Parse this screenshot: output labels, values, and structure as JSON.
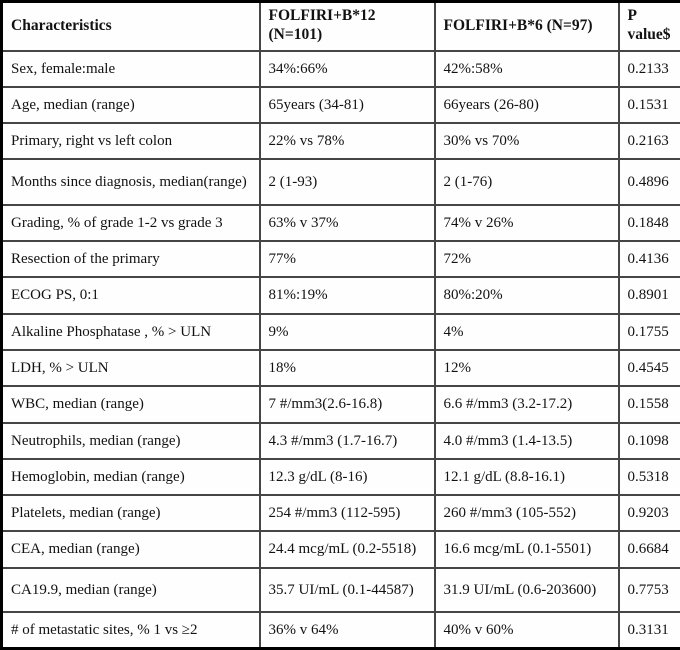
{
  "header": {
    "columns": [
      "Characteristics",
      "FOLFIRI+B*12 (N=101)",
      "FOLFIRI+B*6 (N=97)",
      "P value$"
    ]
  },
  "rows": [
    {
      "label": "Sex, female:male",
      "b12": "34%:66%",
      "b6": "42%:58%",
      "p": "0.2133"
    },
    {
      "label": "Age, median (range)",
      "b12": "65years (34-81)",
      "b6": "66years (26-80)",
      "p": "0.1531"
    },
    {
      "label": "Primary, right vs left colon",
      "b12": "22% vs 78%",
      "b6": "30% vs 70%",
      "p": "0.2163"
    },
    {
      "label": "Months since diagnosis, median(range)",
      "b12": "2 (1-93)",
      "b6": "2 (1-76)",
      "p": "0.4896"
    },
    {
      "label": "Grading, % of grade 1-2 vs grade 3",
      "b12": "63% v 37%",
      "b6": "74% v 26%",
      "p": "0.1848"
    },
    {
      "label": "Resection of the primary",
      "b12": "77%",
      "b6": "72%",
      "p": "0.4136"
    },
    {
      "label": "ECOG PS, 0:1",
      "b12": "81%:19%",
      "b6": "80%:20%",
      "p": "0.8901"
    },
    {
      "label": "Alkaline Phosphatase , % > ULN",
      "b12": "9%",
      "b6": "4%",
      "p": "0.1755"
    },
    {
      "label": "LDH, % > ULN",
      "b12": "18%",
      "b6": "12%",
      "p": "0.4545"
    },
    {
      "label": "WBC, median (range)",
      "b12": "7 #/mm3(2.6-16.8)",
      "b6": "6.6 #/mm3 (3.2-17.2)",
      "p": "0.1558"
    },
    {
      "label": "Neutrophils, median (range)",
      "b12": "4.3 #/mm3 (1.7-16.7)",
      "b6": "4.0 #/mm3 (1.4-13.5)",
      "p": "0.1098"
    },
    {
      "label": "Hemoglobin, median (range)",
      "b12": "12.3 g/dL (8-16)",
      "b6": "12.1 g/dL (8.8-16.1)",
      "p": "0.5318"
    },
    {
      "label": "Platelets, median (range)",
      "b12": "254 #/mm3 (112-595)",
      "b6": "260 #/mm3 (105-552)",
      "p": "0.9203"
    },
    {
      "label": "CEA, median (range)",
      "b12": "24.4 mcg/mL (0.2-5518)",
      "b6": "16.6 mcg/mL (0.1-5501)",
      "p": "0.6684"
    },
    {
      "label": "CA19.9, median (range)",
      "b12": "35.7 UI/mL (0.1-44587)",
      "b6": "31.9 UI/mL (0.6-203600)",
      "p": "0.7753"
    },
    {
      "label": "# of metastatic sites, % 1 vs ≥2",
      "b12": "36% v 64%",
      "b6": "40% v 60%",
      "p": "0.3131"
    }
  ]
}
